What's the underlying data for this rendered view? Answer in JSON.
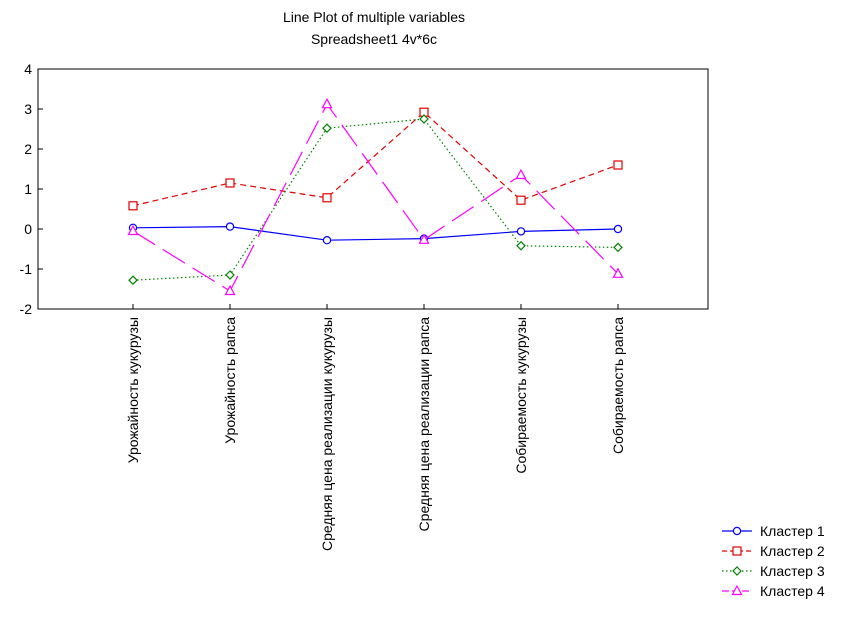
{
  "chart_data": {
    "type": "line",
    "title": "Line Plot of multiple variables",
    "subtitle": "Spreadsheet1 4v*6c",
    "xlabel": "",
    "ylabel": "",
    "categories": [
      "Урожайность кукурузы",
      "Урожайность рапса",
      "Средняя цена реализации кукурузы",
      "Средняя цена реализации рапса",
      "Собираемость кукурузы",
      "Собираемость рапса"
    ],
    "ylim": [
      -2,
      4
    ],
    "yticks": [
      "-2",
      "-1",
      "0",
      "1",
      "2",
      "3",
      "4"
    ],
    "grid": false,
    "legend_position": "bottom-right",
    "series": [
      {
        "name": "Кластер 1",
        "color": "#0000ff",
        "marker": "circle",
        "dash": "solid",
        "values": [
          0.03,
          0.06,
          -0.28,
          -0.24,
          -0.06,
          0.0
        ]
      },
      {
        "name": "Кластер 2",
        "color": "#e00000",
        "marker": "square",
        "dash": "dashed",
        "values": [
          0.58,
          1.15,
          0.78,
          2.92,
          0.72,
          1.6
        ]
      },
      {
        "name": "Кластер 3",
        "color": "#008000",
        "marker": "diamond",
        "dash": "dotted",
        "values": [
          -1.28,
          -1.15,
          2.52,
          2.75,
          -0.42,
          -0.46
        ]
      },
      {
        "name": "Кластер 4",
        "color": "#ff00ff",
        "marker": "triangle",
        "dash": "longdash",
        "values": [
          -0.05,
          -1.55,
          3.12,
          -0.27,
          1.35,
          -1.12
        ]
      }
    ]
  }
}
